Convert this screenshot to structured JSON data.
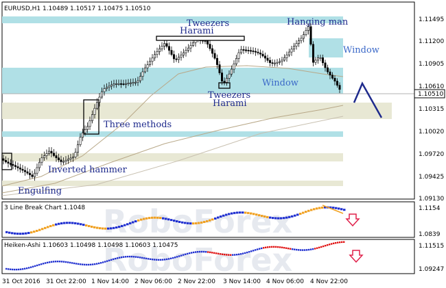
{
  "main_chart": {
    "header": "EURUSD,H1  1.10489 1.10517 1.10475 1.10510",
    "price_axis": [
      "1.11495",
      "1.11200",
      "1.10905",
      "1.10610",
      "1.10315",
      "1.10020",
      "1.09720",
      "1.09425",
      "1.09130"
    ],
    "current_price": "1.10510",
    "annotations": {
      "tweezers_top": "Tweezers",
      "harami_top": "Harami",
      "hanging_man": "Hanging man",
      "window_upper": "Window",
      "window_lower": "Window",
      "tweezers_bottom": "Tweezers",
      "harami_bottom": "Harami",
      "three_methods": "Three methods",
      "inverted_hammer": "Inverted hammer",
      "engulfing": "Engulfing"
    },
    "colors": {
      "zone_blue": "#b0e0e6",
      "zone_beige": "#e8e8d4",
      "forecast": "#1e2a8c"
    }
  },
  "indicator_1": {
    "header": "3 Line Break Chart 1.1048",
    "axis": [
      "1.1154",
      "1.0839"
    ],
    "colors": {
      "up": "#1f2fd0",
      "down": "#f0a020"
    }
  },
  "indicator_2": {
    "header": "Heiken-Ashi 1.10603 1.10498 1.10498 1.10603 1.10475",
    "axis": [
      "1.11515",
      "1.09247"
    ],
    "colors": {
      "up": "#1f2fd0",
      "down": "#e01010"
    }
  },
  "time_axis": [
    "31 Oct 2016",
    "31 Oct 22:00",
    "1 Nov 14:00",
    "2 Nov 06:00",
    "2 Nov 22:00",
    "3 Nov 14:00",
    "4 Nov 06:00",
    "4 Nov 22:00"
  ],
  "watermark": "RoboForex"
}
